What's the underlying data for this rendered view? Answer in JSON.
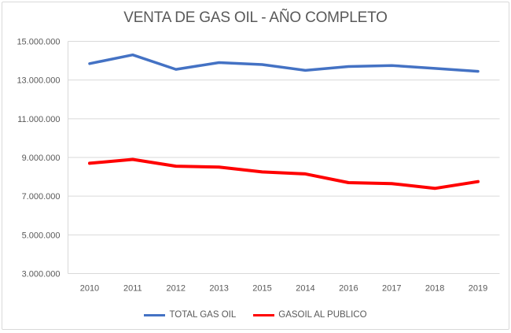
{
  "chart_data": {
    "type": "line",
    "title": "VENTA DE GAS OIL - AÑO COMPLETO",
    "categories": [
      "2010",
      "2011",
      "2012",
      "2013",
      "2015",
      "2014",
      "2016",
      "2017",
      "2018",
      "2019"
    ],
    "series": [
      {
        "name": "TOTAL GAS OIL",
        "color": "#4472C4",
        "values": [
          13850000,
          14300000,
          13550000,
          13900000,
          13800000,
          13500000,
          13700000,
          13750000,
          13600000,
          13450000
        ]
      },
      {
        "name": "GASOIL AL PUBLICO",
        "color": "#FF0000",
        "values": [
          8700000,
          8900000,
          8550000,
          8500000,
          8250000,
          8150000,
          7700000,
          7650000,
          7400000,
          7750000
        ]
      }
    ],
    "y_axis": {
      "min": 3000000,
      "max": 15000000,
      "step": 2000000,
      "tick_labels": [
        "15.000.000",
        "13.000.000",
        "11.000.000",
        "9.000.000",
        "7.000.000",
        "5.000.000",
        "3.000.000"
      ]
    },
    "xlabel": "",
    "ylabel": "",
    "grid": true,
    "legend_position": "bottom",
    "colors": {
      "gridline": "#d9d9d9",
      "axis_line": "#d9d9d9",
      "tick_text": "#595959",
      "title_text": "#595959",
      "background": "#ffffff",
      "border": "#d9d9d9"
    }
  }
}
